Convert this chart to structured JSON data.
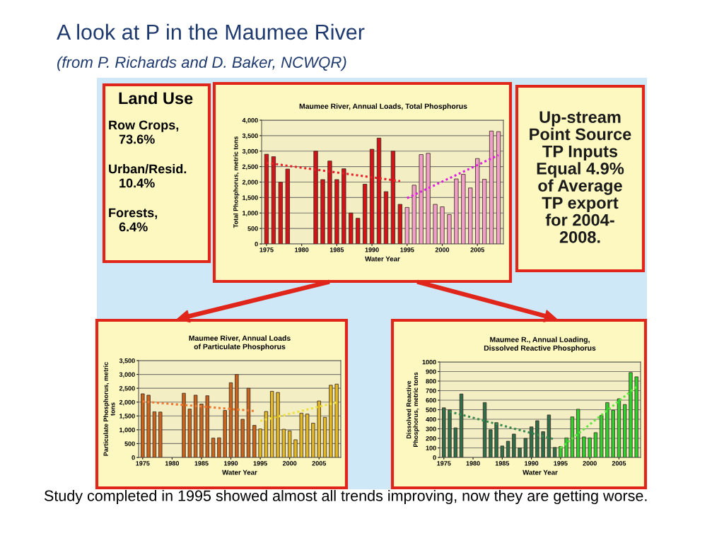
{
  "chart_data": [
    {
      "type": "other",
      "title": "A look at P in the Maumee River",
      "subtitle": "(from P. Richards and D. Baker, NCWQR)",
      "annotations": [
        "Study completed in 1995 showed almost all trends improving, now they are getting worse."
      ]
    },
    {
      "type": "other",
      "title": "Land Use",
      "annotations": [
        "Row Crops,\n   73.6%",
        "Urban/Resid.\n   10.4%",
        "Forests,\n   6.4%"
      ]
    },
    {
      "type": "bar",
      "title": "Maumee River, Annual Loads, Total Phosphorus",
      "xlabel": "Water Year",
      "ylabel": "Total Phosphorus, metric tons",
      "xlim": [
        1974.3,
        2008.7
      ],
      "xticks": [
        1975,
        1980,
        1985,
        1990,
        1995,
        2000,
        2005
      ],
      "ylim": [
        0,
        4000
      ],
      "yticks": [
        0,
        500,
        {
          "value": 1000,
          "label": "1,000"
        },
        {
          "value": 1500,
          "label": "1,500"
        },
        {
          "value": 2000,
          "label": "2,000"
        },
        {
          "value": 2500,
          "label": "2,500"
        },
        {
          "value": 3000,
          "label": "3,000"
        },
        {
          "value": 3500,
          "label": "3,500"
        },
        {
          "value": 4000,
          "label": "4,000"
        }
      ],
      "grid": "y",
      "series": [
        {
          "type": "bar",
          "color": "#d0141a",
          "x": [
            1975,
            1976,
            1977,
            1978,
            1979,
            1980,
            1981,
            1982,
            1983,
            1984,
            1985,
            1986,
            1987,
            1988,
            1989,
            1990,
            1991,
            1992,
            1993,
            1994
          ],
          "values": [
            2900,
            2820,
            2000,
            2420,
            null,
            null,
            null,
            3000,
            2080,
            2680,
            2080,
            2430,
            1000,
            830,
            1930,
            3060,
            3420,
            1690,
            3000,
            1280
          ]
        },
        {
          "type": "bar",
          "color": "#f0a0c8",
          "x": [
            1995,
            1996,
            1997,
            1998,
            1999,
            2000,
            2001,
            2002,
            2003,
            2004,
            2005,
            2006,
            2007,
            2008
          ],
          "values": [
            1180,
            1900,
            2890,
            2930,
            1280,
            1200,
            950,
            2100,
            2250,
            1810,
            2760,
            2090,
            3650,
            3630
          ]
        },
        {
          "type": "line",
          "color": "#e8202a",
          "line_style": "dotted",
          "marker": "none",
          "x": [
            1975,
            1994
          ],
          "values": [
            2620,
            2030
          ]
        },
        {
          "type": "line",
          "color": "#e020e0",
          "line_style": "dotted",
          "marker": "none",
          "x": [
            1995,
            2008
          ],
          "values": [
            1480,
            2870
          ]
        }
      ]
    },
    {
      "type": "other",
      "annotations": [
        "Up-stream\nPoint Source\nTP Inputs\nEqual 4.9%\nof Average\nTP export\nfor 2004-\n2008."
      ]
    },
    {
      "type": "bar",
      "title": "Maumee River, Annual Loads\nof Particulate Phosphorus",
      "xlabel": "Water Year",
      "ylabel": "Particulate Phosphorus, metric\ntons",
      "xlim": [
        1974.3,
        2008.7
      ],
      "xticks": [
        1975,
        1980,
        1985,
        1990,
        1995,
        2000,
        2005
      ],
      "ylim": [
        0,
        3500
      ],
      "yticks": [
        0,
        500,
        {
          "value": 1000,
          "label": "1,000"
        },
        {
          "value": 1500,
          "label": "1,500"
        },
        {
          "value": 2000,
          "label": "2,000"
        },
        {
          "value": 2500,
          "label": "2,500"
        },
        {
          "value": 3000,
          "label": "3,000"
        },
        {
          "value": 3500,
          "label": "3,500"
        }
      ],
      "grid": "y",
      "series": [
        {
          "type": "bar",
          "color": "#c8641e",
          "x": [
            1975,
            1976,
            1977,
            1978,
            1979,
            1980,
            1981,
            1982,
            1983,
            1984,
            1985,
            1986,
            1987,
            1988,
            1989,
            1990,
            1991,
            1992,
            1993,
            1994
          ],
          "values": [
            2300,
            2250,
            1650,
            1640,
            null,
            null,
            null,
            2320,
            1750,
            2250,
            1930,
            2230,
            700,
            710,
            1700,
            2700,
            3000,
            1380,
            2500,
            1160
          ]
        },
        {
          "type": "bar",
          "color": "#e0b828",
          "x": [
            1995,
            1996,
            1997,
            1998,
            1999,
            2000,
            2001,
            2002,
            2003,
            2004,
            2005,
            2006,
            2007,
            2008
          ],
          "values": [
            1030,
            1660,
            2390,
            2350,
            1020,
            960,
            640,
            1600,
            1570,
            1240,
            2040,
            1450,
            2610,
            2650
          ]
        },
        {
          "type": "line",
          "color": "#f07830",
          "line_style": "dotted",
          "marker": "none",
          "x": [
            1975,
            1994
          ],
          "values": [
            2020,
            1680
          ]
        },
        {
          "type": "line",
          "color": "#f0e040",
          "line_style": "dotted",
          "marker": "none",
          "x": [
            1995,
            2008
          ],
          "values": [
            1320,
            1990
          ]
        }
      ]
    },
    {
      "type": "bar",
      "title": "Maumee R., Annual Loading,\nDissolved Reactive Phosphorus",
      "xlabel": "Water Year",
      "ylabel": "Dissolved Reactive\nPhosphorus, metric tons",
      "xlim": [
        1974.3,
        2008.7
      ],
      "xticks": [
        1975,
        1980,
        1985,
        1990,
        1995,
        2000,
        2005
      ],
      "ylim": [
        0,
        1000
      ],
      "yticks": [
        0,
        100,
        200,
        300,
        400,
        500,
        600,
        700,
        800,
        900,
        1000
      ],
      "grid": "y",
      "series": [
        {
          "type": "bar",
          "color": "#2e6e4a",
          "x": [
            1975,
            1976,
            1977,
            1978,
            1979,
            1980,
            1981,
            1982,
            1983,
            1984,
            1985,
            1986,
            1987,
            1988,
            1989,
            1990,
            1991,
            1992,
            1993,
            1994
          ],
          "values": [
            520,
            500,
            310,
            665,
            null,
            null,
            null,
            575,
            290,
            365,
            120,
            170,
            245,
            100,
            200,
            320,
            385,
            270,
            445,
            105
          ]
        },
        {
          "type": "bar",
          "color": "#30d030",
          "x": [
            1995,
            1996,
            1997,
            1998,
            1999,
            2000,
            2001,
            2002,
            2003,
            2004,
            2005,
            2006,
            2007,
            2008
          ],
          "values": [
            115,
            205,
            425,
            505,
            215,
            205,
            260,
            440,
            575,
            495,
            615,
            555,
            890,
            845
          ]
        },
        {
          "type": "line",
          "color": "#3a8a50",
          "line_style": "dotted",
          "marker": "none",
          "x": [
            1976,
            1994
          ],
          "values": [
            480,
            190
          ]
        },
        {
          "type": "line",
          "color": "#60e840",
          "line_style": "dotted",
          "marker": "none",
          "x": [
            1995,
            2008
          ],
          "values": [
            100,
            740
          ]
        }
      ]
    }
  ]
}
